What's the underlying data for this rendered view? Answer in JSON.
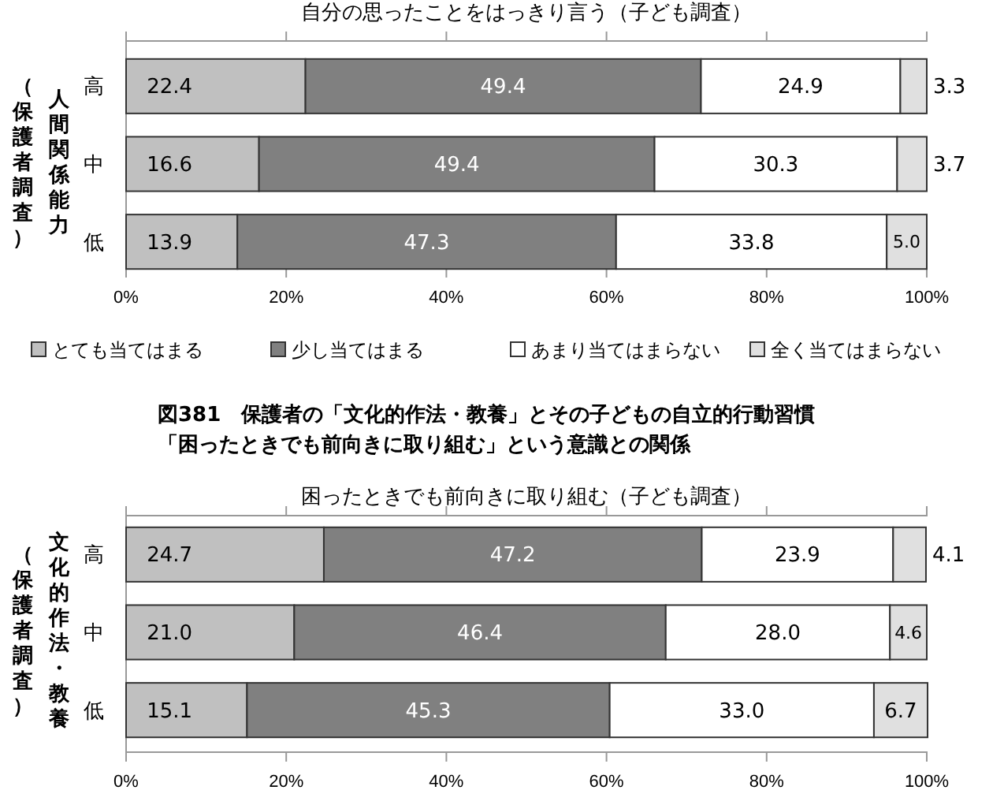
{
  "chart_data": [
    {
      "type": "bar",
      "orientation": "horizontal",
      "stacked": true,
      "title": "自分の思ったことをはっきり言う（子ども調査）",
      "ylabel": "人間関係能力（保護者調査）",
      "categories": [
        "高",
        "中",
        "低"
      ],
      "xlim": [
        0,
        100
      ],
      "xticks": [
        {
          "value": 0,
          "label": "0%"
        },
        {
          "value": 20,
          "label": "20%"
        },
        {
          "value": 40,
          "label": "40%"
        },
        {
          "value": 60,
          "label": "60%"
        },
        {
          "value": 80,
          "label": "80%"
        },
        {
          "value": 100,
          "label": "100%"
        }
      ],
      "legend": "bottom",
      "tick_labels": "x",
      "series": [
        {
          "name": "とても当てはまる",
          "color": "#c0c0c0",
          "values": [
            22.4,
            16.6,
            13.9
          ],
          "value_labels": [
            "22.4",
            "16.6",
            "13.9"
          ]
        },
        {
          "name": "少し当てはまる",
          "color": "#808080",
          "values": [
            49.4,
            49.4,
            47.3
          ],
          "value_labels": [
            "49.4",
            "49.4",
            "47.3"
          ]
        },
        {
          "name": "あまり当てはまらない",
          "color": "#ffffff",
          "values": [
            24.9,
            30.3,
            33.8
          ],
          "value_labels": [
            "24.9",
            "30.3",
            "33.8"
          ]
        },
        {
          "name": "全く当てはまらない",
          "color": "#e0e0e0",
          "values": [
            3.3,
            3.7,
            5.0
          ],
          "value_labels": [
            "3.3",
            "3.7",
            "5.0"
          ]
        }
      ]
    },
    {
      "type": "bar",
      "orientation": "horizontal",
      "stacked": true,
      "title": "図381　保護者の「文化的作法・教養」とその子どもの自立的行動習慣「困ったときでも前向きに取り組む」という意識との関係",
      "subtitle": "困ったときでも前向きに取り組む（子ども調査）",
      "ylabel": "文化的作法・教養（保護者調査）",
      "categories": [
        "高",
        "中",
        "低"
      ],
      "xlim": [
        0,
        100
      ],
      "xticks": [
        {
          "value": 0,
          "label": "0%"
        },
        {
          "value": 20,
          "label": "20%"
        },
        {
          "value": 40,
          "label": "40%"
        },
        {
          "value": 60,
          "label": "60%"
        },
        {
          "value": 80,
          "label": "80%"
        },
        {
          "value": 100,
          "label": "100%"
        }
      ],
      "tick_labels": "x",
      "series": [
        {
          "color": "#c0c0c0",
          "values": [
            24.7,
            21.0,
            15.1
          ],
          "value_labels": [
            "24.7",
            "21.0",
            "15.1"
          ]
        },
        {
          "color": "#808080",
          "values": [
            47.2,
            46.4,
            45.3
          ],
          "value_labels": [
            "47.2",
            "46.4",
            "45.3"
          ]
        },
        {
          "color": "#ffffff",
          "values": [
            23.9,
            28.0,
            33.0
          ],
          "value_labels": [
            "23.9",
            "28.0",
            "33.0"
          ]
        },
        {
          "color": "#e0e0e0",
          "values": [
            4.1,
            4.6,
            6.7
          ],
          "value_labels": [
            "4.1",
            "4.6",
            "6.7"
          ]
        }
      ]
    }
  ]
}
